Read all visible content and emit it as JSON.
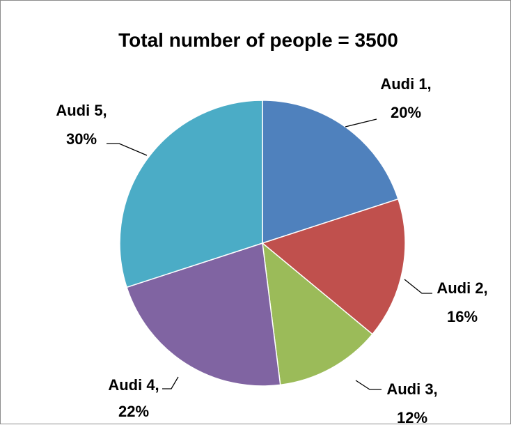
{
  "chart_data": {
    "type": "pie",
    "title": "Total number of people = 3500",
    "categories": [
      "Audi 1",
      "Audi 2",
      "Audi 3",
      "Audi 4",
      "Audi 5"
    ],
    "values": [
      20,
      16,
      12,
      22,
      30
    ],
    "labels": [
      {
        "name": "Audi 1,",
        "percent": "20%"
      },
      {
        "name": "Audi 2,",
        "percent": "16%"
      },
      {
        "name": "Audi 3,",
        "percent": "12%"
      },
      {
        "name": "Audi 4,",
        "percent": "22%"
      },
      {
        "name": "Audi 5,",
        "percent": "30%"
      }
    ],
    "colors": [
      "#4F81BD",
      "#C0504D",
      "#9BBB59",
      "#8064A2",
      "#4BACC6"
    ],
    "slice_start": "top",
    "direction": "clockwise",
    "legend": "none"
  }
}
